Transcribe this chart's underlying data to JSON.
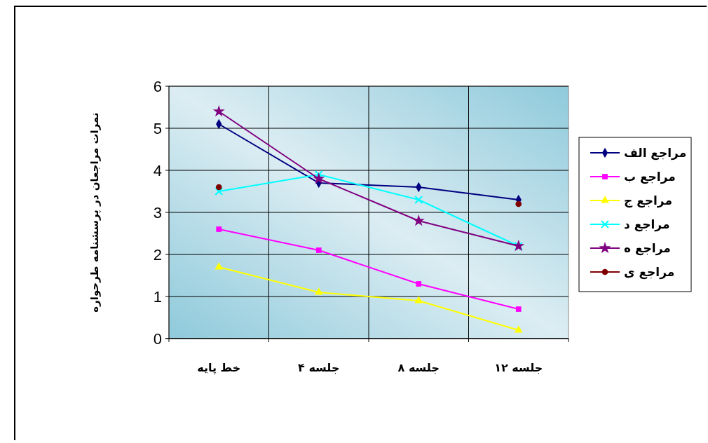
{
  "chart_data": {
    "type": "line",
    "ylabel": "نمرات مراجعان در پرسشنامه طرحواره",
    "categories": [
      "خط پایه",
      "جلسه ۴",
      "جلسه ۸",
      "جلسه ۱۲"
    ],
    "ylim": [
      0,
      6
    ],
    "yticks": [
      0,
      1,
      2,
      3,
      4,
      5,
      6
    ],
    "grid": true,
    "legend": "right",
    "series": [
      {
        "name": "مراجع الف",
        "color": "#000080",
        "marker": "diamond",
        "values": [
          5.1,
          3.7,
          3.6,
          3.3
        ]
      },
      {
        "name": "مراجع ب",
        "color": "#ff00ff",
        "marker": "square",
        "values": [
          2.6,
          2.1,
          1.3,
          0.7
        ]
      },
      {
        "name": "مراجع ج",
        "color": "#ffff00",
        "marker": "triangle",
        "values": [
          1.7,
          1.1,
          0.9,
          0.2
        ]
      },
      {
        "name": "مراجع د",
        "color": "#00ffff",
        "marker": "cross",
        "values": [
          3.5,
          3.9,
          3.3,
          2.2
        ]
      },
      {
        "name": "مراجع ه",
        "color": "#800080",
        "marker": "star",
        "values": [
          5.4,
          3.8,
          2.8,
          2.2
        ]
      },
      {
        "name": "مراجع ی",
        "color": "#800000",
        "marker": "circle",
        "type": "scatter",
        "values": [
          3.6,
          null,
          null,
          3.2
        ]
      }
    ]
  }
}
